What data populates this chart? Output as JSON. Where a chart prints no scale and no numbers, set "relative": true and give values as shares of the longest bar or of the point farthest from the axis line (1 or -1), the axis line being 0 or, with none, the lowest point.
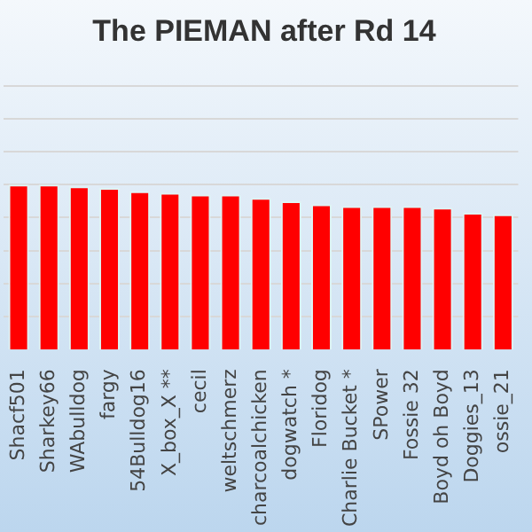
{
  "chart_data": {
    "type": "bar",
    "title": "The PIEMAN after Rd 14",
    "relative": true,
    "grid": "y",
    "color": "#ff0000",
    "categories": [
      "Shacf501",
      "Sharkey66",
      "WAbulldog",
      "fargy",
      "54Bulldog16",
      "X_box_X **",
      "cecil",
      "weltschmerz",
      "charcoalchicken",
      "dogwatch *",
      "Floridog",
      "Charlie Bucket *",
      "SPower",
      "Fossie 32",
      "Boyd oh Boyd",
      "Doggies_13",
      "ossie_21"
    ],
    "values": [
      1,
      1,
      0.99,
      0.98,
      0.96,
      0.95,
      0.94,
      0.94,
      0.92,
      0.9,
      0.88,
      0.87,
      0.87,
      0.87,
      0.86,
      0.83,
      0.82
    ]
  }
}
